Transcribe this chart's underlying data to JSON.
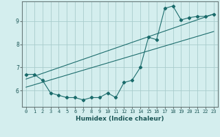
{
  "xlabel": "Humidex (Indice chaleur)",
  "background_color": "#d4eeee",
  "grid_color": "#a8cccc",
  "line_color": "#1a6b6b",
  "x_data": [
    0,
    1,
    2,
    3,
    4,
    5,
    6,
    7,
    8,
    9,
    10,
    11,
    12,
    13,
    14,
    15,
    16,
    17,
    18,
    19,
    20,
    21,
    22,
    23
  ],
  "y_data": [
    6.7,
    6.7,
    6.45,
    5.9,
    5.8,
    5.7,
    5.7,
    5.6,
    5.7,
    5.7,
    5.9,
    5.7,
    6.35,
    6.45,
    7.0,
    8.3,
    8.2,
    9.55,
    9.65,
    9.05,
    9.15,
    9.2,
    9.2,
    9.3
  ],
  "line1_x": [
    0,
    23
  ],
  "line1_y": [
    6.5,
    9.3
  ],
  "line2_x": [
    0,
    23
  ],
  "line2_y": [
    6.15,
    8.55
  ],
  "xlim": [
    -0.5,
    23.5
  ],
  "ylim": [
    5.3,
    9.85
  ],
  "yticks": [
    6,
    7,
    8,
    9
  ],
  "xticks": [
    0,
    1,
    2,
    3,
    4,
    5,
    6,
    7,
    8,
    9,
    10,
    11,
    12,
    13,
    14,
    15,
    16,
    17,
    18,
    19,
    20,
    21,
    22,
    23
  ],
  "tick_fontsize": 5.0,
  "xlabel_fontsize": 6.5,
  "marker_size": 2.2
}
